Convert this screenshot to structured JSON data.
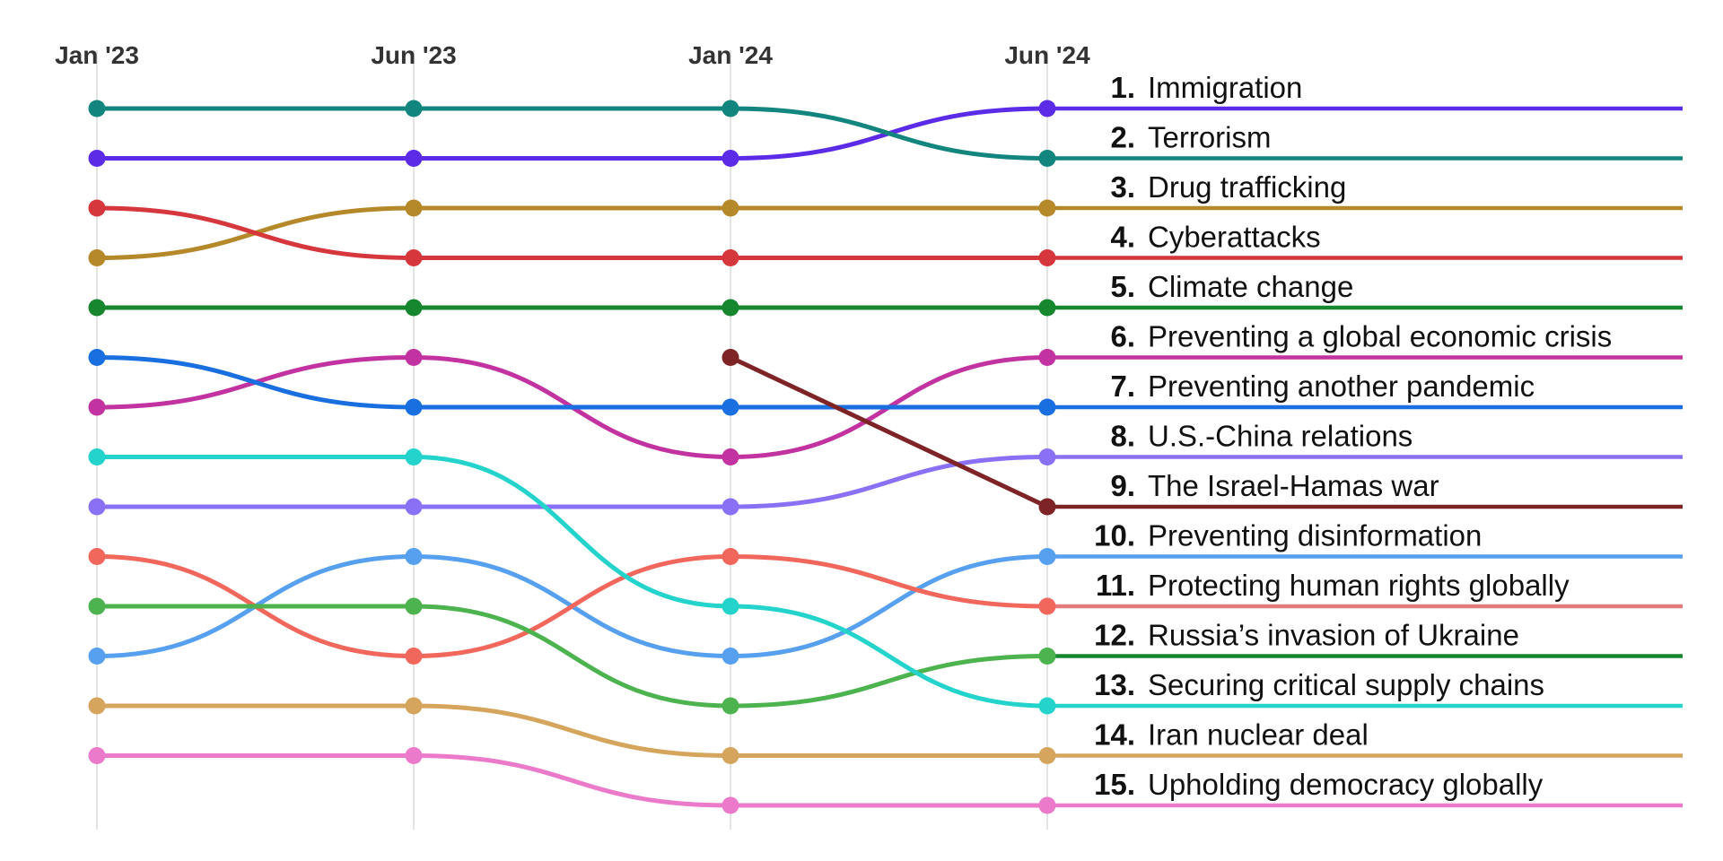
{
  "chart_data": {
    "type": "line",
    "subtype": "bump",
    "x": [
      "Jan '23",
      "Jun '23",
      "Jan '24",
      "Jun '24"
    ],
    "y_axis": "rank",
    "ylim": [
      1,
      15
    ],
    "y_inverted": true,
    "grid": "vertical",
    "legend": "right-side labels",
    "series": [
      {
        "name": "Immigration",
        "color": "#5b2be8",
        "ranks": [
          2,
          2,
          2,
          1
        ]
      },
      {
        "name": "Terrorism",
        "color": "#13857f",
        "ranks": [
          1,
          1,
          1,
          2
        ]
      },
      {
        "name": "Drug trafficking",
        "color": "#b5882a",
        "ranks": [
          4,
          3,
          3,
          3
        ]
      },
      {
        "name": "Cyberattacks",
        "color": "#d6373d",
        "ranks": [
          3,
          4,
          4,
          4
        ]
      },
      {
        "name": "Climate change",
        "color": "#17872f",
        "ranks": [
          5,
          5,
          5,
          5
        ]
      },
      {
        "name": "Preventing a global economic crisis",
        "color": "#c232a0",
        "ranks": [
          7,
          6,
          8,
          6
        ]
      },
      {
        "name": "Preventing another pandemic",
        "color": "#1a6fe0",
        "ranks": [
          6,
          7,
          7,
          7
        ]
      },
      {
        "name": "U.S.-China relations",
        "color": "#8a70f5",
        "ranks": [
          9,
          9,
          9,
          8
        ]
      },
      {
        "name": "The Israel-Hamas war",
        "color": "#7e2326",
        "ranks": [
          null,
          null,
          6,
          9
        ]
      },
      {
        "name": "Preventing disinformation",
        "color": "#56a0ef",
        "ranks": [
          12,
          10,
          12,
          10
        ]
      },
      {
        "name": "Protecting human rights globally",
        "color": "#f2675c",
        "ranks": [
          10,
          12,
          10,
          11
        ]
      },
      {
        "name": "Russia’s invasion of Ukraine",
        "color": "#4db34e",
        "ranks": [
          11,
          11,
          13,
          12
        ]
      },
      {
        "name": "Securing critical supply chains",
        "color": "#24d3cc",
        "ranks": [
          8,
          8,
          11,
          13
        ]
      },
      {
        "name": "Iran nuclear deal",
        "color": "#d6a55d",
        "ranks": [
          13,
          13,
          14,
          14
        ]
      },
      {
        "name": "Upholding democracy globally",
        "color": "#eb7acb",
        "ranks": [
          14,
          14,
          15,
          15
        ]
      }
    ],
    "label_colors": [
      "#5b2be8",
      "#13857f",
      "#b5882a",
      "#d6373d",
      "#17872f",
      "#c232a0",
      "#1a6fe0",
      "#8a70f5",
      "#7e2326",
      "#56a0ef",
      "#e57a7c",
      "#17872f",
      "#24d3cc",
      "#d6a55d",
      "#eb7acb"
    ],
    "rank_labels": [
      {
        "rank": "1.",
        "name": "Immigration"
      },
      {
        "rank": "2.",
        "name": "Terrorism"
      },
      {
        "rank": "3.",
        "name": "Drug trafficking"
      },
      {
        "rank": "4.",
        "name": "Cyberattacks"
      },
      {
        "rank": "5.",
        "name": "Climate change"
      },
      {
        "rank": "6.",
        "name": "Preventing a global economic crisis"
      },
      {
        "rank": "7.",
        "name": "Preventing another pandemic"
      },
      {
        "rank": "8.",
        "name": "U.S.-China relations"
      },
      {
        "rank": "9.",
        "name": "The Israel-Hamas war"
      },
      {
        "rank": "10.",
        "name": "Preventing disinformation"
      },
      {
        "rank": "11.",
        "name": "Protecting human rights globally"
      },
      {
        "rank": "12.",
        "name": "Russia’s invasion of Ukraine"
      },
      {
        "rank": "13.",
        "name": "Securing critical supply chains"
      },
      {
        "rank": "14.",
        "name": "Iran nuclear deal"
      },
      {
        "rank": "15.",
        "name": "Upholding democracy globally"
      }
    ]
  }
}
